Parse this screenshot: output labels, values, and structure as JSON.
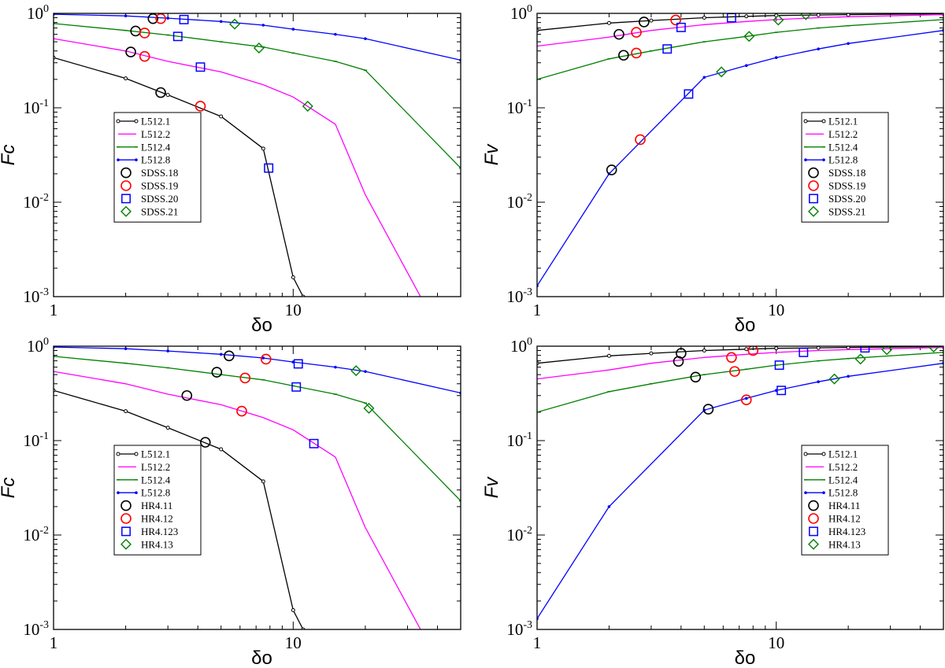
{
  "chart_data": [
    {
      "type": "line",
      "panel": "top-left",
      "xlabel": "δo",
      "ylabel": "Fc",
      "xscale": "log",
      "yscale": "log",
      "xlim": [
        1,
        50
      ],
      "ylim": [
        0.001,
        1
      ],
      "xtick_labels": [
        "1",
        "10"
      ],
      "ytick_labels": [
        {
          "base": "10",
          "exp": "0"
        },
        {
          "base": "10",
          "exp": "-1"
        },
        {
          "base": "10",
          "exp": "-2"
        },
        {
          "base": "10",
          "exp": "-3"
        }
      ],
      "series": [
        {
          "name": "L512.1",
          "color": "#000000",
          "marker": "dot-open",
          "x": [
            1,
            2,
            3,
            5,
            7.5,
            10,
            11
          ],
          "y": [
            0.34,
            0.205,
            0.137,
            0.081,
            0.037,
            0.0016,
            0.001
          ]
        },
        {
          "name": "L512.2",
          "color": "#ff00ff",
          "marker": "none",
          "x": [
            1,
            2,
            3,
            5,
            7.5,
            10,
            15,
            20,
            34
          ],
          "y": [
            0.54,
            0.4,
            0.31,
            0.24,
            0.175,
            0.13,
            0.067,
            0.012,
            0.001
          ]
        },
        {
          "name": "L512.4",
          "color": "#008000",
          "marker": "tick",
          "x": [
            1,
            2,
            3,
            5,
            7.5,
            10,
            15,
            20,
            50
          ],
          "y": [
            0.78,
            0.66,
            0.59,
            0.5,
            0.44,
            0.38,
            0.31,
            0.25,
            0.023
          ]
        },
        {
          "name": "L512.8",
          "color": "#0000ff",
          "marker": "dot",
          "x": [
            1,
            2,
            3,
            5,
            7.5,
            10,
            15,
            20,
            50
          ],
          "y": [
            0.98,
            0.94,
            0.89,
            0.82,
            0.75,
            0.68,
            0.6,
            0.54,
            0.32
          ]
        }
      ],
      "points": [
        {
          "name": "SDSS.18",
          "color": "#000000",
          "marker": "circle",
          "x": [
            2.6,
            2.2,
            2.1,
            2.8
          ],
          "y": [
            0.88,
            0.65,
            0.39,
            0.145
          ]
        },
        {
          "name": "SDSS.19",
          "color": "#ff0000",
          "marker": "circle",
          "x": [
            2.8,
            2.4,
            2.4,
            4.1
          ],
          "y": [
            0.88,
            0.62,
            0.35,
            0.104
          ]
        },
        {
          "name": "SDSS.20",
          "color": "#0000ff",
          "marker": "square",
          "x": [
            3.5,
            3.3,
            4.1,
            7.9
          ],
          "y": [
            0.86,
            0.57,
            0.27,
            0.023
          ]
        },
        {
          "name": "SDSS.21",
          "color": "#008000",
          "marker": "diamond",
          "x": [
            5.7,
            7.2,
            11.5
          ],
          "y": [
            0.77,
            0.43,
            0.104
          ]
        }
      ]
    },
    {
      "type": "line",
      "panel": "top-right",
      "xlabel": "δo",
      "ylabel": "Fv",
      "xscale": "log",
      "yscale": "log",
      "xlim": [
        1,
        50
      ],
      "ylim": [
        0.001,
        1
      ],
      "xtick_labels": [
        "1",
        "10"
      ],
      "ytick_labels": [
        {
          "base": "10",
          "exp": "0"
        },
        {
          "base": "10",
          "exp": "-1"
        },
        {
          "base": "10",
          "exp": "-2"
        },
        {
          "base": "10",
          "exp": "-3"
        }
      ],
      "series": [
        {
          "name": "L512.1",
          "color": "#000000",
          "marker": "dot-open",
          "x": [
            1,
            2,
            3,
            5,
            7.5,
            10,
            15,
            20,
            50
          ],
          "y": [
            0.66,
            0.79,
            0.84,
            0.9,
            0.93,
            0.95,
            0.96,
            0.97,
            0.99
          ]
        },
        {
          "name": "L512.2",
          "color": "#ff00ff",
          "marker": "none",
          "x": [
            1,
            2,
            3,
            5,
            7.5,
            10,
            15,
            20,
            50
          ],
          "y": [
            0.45,
            0.56,
            0.66,
            0.76,
            0.82,
            0.86,
            0.9,
            0.92,
            0.97
          ]
        },
        {
          "name": "L512.4",
          "color": "#008000",
          "marker": "tick",
          "x": [
            1,
            2,
            3,
            5,
            7.5,
            10,
            15,
            20,
            50
          ],
          "y": [
            0.2,
            0.33,
            0.4,
            0.5,
            0.57,
            0.63,
            0.7,
            0.74,
            0.86
          ]
        },
        {
          "name": "L512.8",
          "color": "#0000ff",
          "marker": "dot",
          "x": [
            1,
            2,
            5,
            7.5,
            10,
            15,
            20,
            50
          ],
          "y": [
            0.0013,
            0.02,
            0.21,
            0.28,
            0.34,
            0.42,
            0.48,
            0.66
          ]
        }
      ],
      "points": [
        {
          "name": "SDSS.18",
          "color": "#000000",
          "marker": "circle",
          "x": [
            2.8,
            2.2,
            2.3,
            2.05
          ],
          "y": [
            0.81,
            0.6,
            0.36,
            0.022
          ]
        },
        {
          "name": "SDSS.19",
          "color": "#ff0000",
          "marker": "circle",
          "x": [
            3.8,
            2.6,
            2.6,
            2.7
          ],
          "y": [
            0.85,
            0.63,
            0.38,
            0.046
          ]
        },
        {
          "name": "SDSS.20",
          "color": "#0000ff",
          "marker": "square",
          "x": [
            6.5,
            4.0,
            3.5,
            4.3
          ],
          "y": [
            0.9,
            0.71,
            0.42,
            0.14
          ]
        },
        {
          "name": "SDSS.21",
          "color": "#008000",
          "marker": "diamond",
          "x": [
            13.3,
            10.2,
            7.7,
            5.9
          ],
          "y": [
            0.97,
            0.85,
            0.57,
            0.24
          ]
        }
      ]
    },
    {
      "type": "line",
      "panel": "bottom-left",
      "xlabel": "δo",
      "ylabel": "Fc",
      "xscale": "log",
      "yscale": "log",
      "xlim": [
        1,
        50
      ],
      "ylim": [
        0.001,
        1
      ],
      "xtick_labels": [
        "1",
        "10"
      ],
      "ytick_labels": [
        {
          "base": "10",
          "exp": "0"
        },
        {
          "base": "10",
          "exp": "-1"
        },
        {
          "base": "10",
          "exp": "-2"
        },
        {
          "base": "10",
          "exp": "-3"
        }
      ],
      "series": [
        {
          "name": "L512.1",
          "color": "#000000",
          "marker": "dot-open",
          "x": [
            1,
            2,
            3,
            5,
            7.5,
            10,
            11
          ],
          "y": [
            0.34,
            0.205,
            0.137,
            0.081,
            0.037,
            0.0016,
            0.001
          ]
        },
        {
          "name": "L512.2",
          "color": "#ff00ff",
          "marker": "none",
          "x": [
            1,
            2,
            3,
            5,
            7.5,
            10,
            15,
            20,
            34
          ],
          "y": [
            0.54,
            0.4,
            0.31,
            0.24,
            0.175,
            0.13,
            0.067,
            0.012,
            0.001
          ]
        },
        {
          "name": "L512.4",
          "color": "#008000",
          "marker": "tick",
          "x": [
            1,
            2,
            3,
            5,
            7.5,
            10,
            15,
            20,
            50
          ],
          "y": [
            0.78,
            0.66,
            0.59,
            0.5,
            0.44,
            0.38,
            0.31,
            0.25,
            0.023
          ]
        },
        {
          "name": "L512.8",
          "color": "#0000ff",
          "marker": "dot",
          "x": [
            1,
            2,
            3,
            5,
            7.5,
            10,
            15,
            20,
            50
          ],
          "y": [
            0.98,
            0.94,
            0.89,
            0.82,
            0.75,
            0.68,
            0.6,
            0.54,
            0.32
          ]
        }
      ],
      "points": [
        {
          "name": "HR4.11",
          "color": "#000000",
          "marker": "circle",
          "x": [
            5.4,
            4.8,
            3.6,
            4.3
          ],
          "y": [
            0.79,
            0.53,
            0.3,
            0.096
          ]
        },
        {
          "name": "HR4.12",
          "color": "#ff0000",
          "marker": "circle",
          "x": [
            7.7,
            6.3,
            6.1
          ],
          "y": [
            0.73,
            0.46,
            0.205
          ]
        },
        {
          "name": "HR4.123",
          "color": "#0000ff",
          "marker": "square",
          "x": [
            10.5,
            10.3,
            12.2
          ],
          "y": [
            0.65,
            0.37,
            0.093
          ]
        },
        {
          "name": "HR4.13",
          "color": "#008000",
          "marker": "diamond",
          "x": [
            18.3,
            20.7
          ],
          "y": [
            0.55,
            0.22
          ]
        }
      ]
    },
    {
      "type": "line",
      "panel": "bottom-right",
      "xlabel": "δo",
      "ylabel": "Fv",
      "xscale": "log",
      "yscale": "log",
      "xlim": [
        1,
        50
      ],
      "ylim": [
        0.001,
        1
      ],
      "xtick_labels": [
        "1",
        "10"
      ],
      "ytick_labels": [
        {
          "base": "10",
          "exp": "0"
        },
        {
          "base": "10",
          "exp": "-1"
        },
        {
          "base": "10",
          "exp": "-2"
        },
        {
          "base": "10",
          "exp": "-3"
        }
      ],
      "series": [
        {
          "name": "L512.1",
          "color": "#000000",
          "marker": "dot-open",
          "x": [
            1,
            2,
            3,
            5,
            7.5,
            10,
            15,
            20,
            50
          ],
          "y": [
            0.66,
            0.79,
            0.84,
            0.9,
            0.93,
            0.95,
            0.96,
            0.97,
            0.99
          ]
        },
        {
          "name": "L512.2",
          "color": "#ff00ff",
          "marker": "none",
          "x": [
            1,
            2,
            3,
            5,
            7.5,
            10,
            15,
            20,
            50
          ],
          "y": [
            0.45,
            0.56,
            0.66,
            0.76,
            0.82,
            0.86,
            0.9,
            0.92,
            0.97
          ]
        },
        {
          "name": "L512.4",
          "color": "#008000",
          "marker": "tick",
          "x": [
            1,
            2,
            3,
            5,
            7.5,
            10,
            15,
            20,
            50
          ],
          "y": [
            0.2,
            0.33,
            0.4,
            0.5,
            0.57,
            0.63,
            0.7,
            0.74,
            0.86
          ]
        },
        {
          "name": "L512.8",
          "color": "#0000ff",
          "marker": "dot",
          "x": [
            1,
            2,
            5,
            7.5,
            10,
            15,
            20,
            50
          ],
          "y": [
            0.0013,
            0.02,
            0.21,
            0.28,
            0.34,
            0.42,
            0.48,
            0.66
          ]
        }
      ],
      "points": [
        {
          "name": "HR4.11",
          "color": "#000000",
          "marker": "circle",
          "x": [
            4.0,
            3.9,
            4.6,
            5.2
          ],
          "y": [
            0.84,
            0.69,
            0.47,
            0.215
          ]
        },
        {
          "name": "HR4.12",
          "color": "#ff0000",
          "marker": "circle",
          "x": [
            8.0,
            6.5,
            6.7,
            7.5
          ],
          "y": [
            0.9,
            0.76,
            0.54,
            0.27
          ]
        },
        {
          "name": "HR4.123",
          "color": "#0000ff",
          "marker": "square",
          "x": [
            23.5,
            13.0,
            10.3,
            10.5
          ],
          "y": [
            0.96,
            0.86,
            0.63,
            0.34
          ]
        },
        {
          "name": "HR4.13",
          "color": "#008000",
          "marker": "diamond",
          "x": [
            45.5,
            29.0,
            22.5,
            17.5
          ],
          "y": [
            0.98,
            0.92,
            0.73,
            0.45
          ]
        }
      ]
    }
  ]
}
